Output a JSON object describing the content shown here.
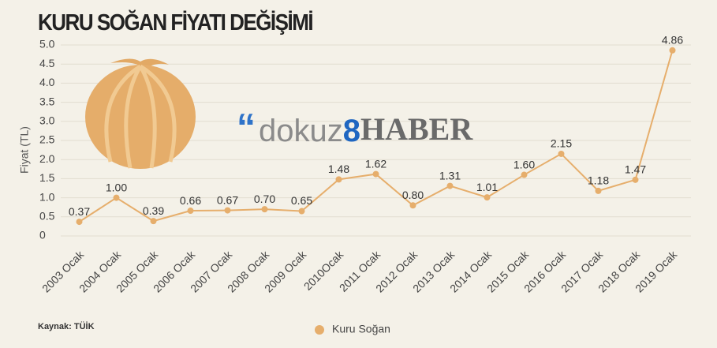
{
  "chart_data": {
    "type": "line",
    "title": "KURU SOĞAN FİYATI DEĞİŞİMİ",
    "y_label": "Fiyat (TL)",
    "categories": [
      "2003 Ocak",
      "2004 Ocak",
      "2005 Ocak",
      "2006 Ocak",
      "2007 Ocak",
      "2008 Ocak",
      "2009 Ocak",
      "2010Ocak",
      "2011 Ocak",
      "2012 Ocak",
      "2013 Ocak",
      "2014 Ocak",
      "2015 Ocak",
      "2016 Ocak",
      "2017 Ocak",
      "2018 Ocak",
      "2019 Ocak"
    ],
    "series": [
      {
        "name": "Kuru Soğan",
        "color": "#e6ae6c",
        "values": [
          0.37,
          1,
          0.39,
          0.66,
          0.67,
          0.7,
          0.65,
          1.48,
          1.62,
          0.8,
          1.31,
          1.01,
          1.6,
          2.15,
          1.18,
          1.47,
          4.86
        ],
        "value_labels": [
          "0.37",
          "1.00",
          "0.39",
          "0.66",
          "0.67",
          "0.70",
          "0.65",
          "1.48",
          "1.62",
          "0.80",
          "1.31",
          "1.01",
          "1.60",
          "2.15",
          "1.18",
          "1.47",
          "4.86"
        ]
      }
    ],
    "ylim": [
      0,
      5
    ],
    "yticks": [
      0,
      0.5,
      {
        "value": 1,
        "label": "1.0"
      },
      1.5,
      {
        "value": 2,
        "label": "2.0"
      },
      2.5,
      {
        "value": 3,
        "label": "3.0"
      },
      3.5,
      {
        "value": 4,
        "label": "4.0"
      },
      4.5,
      {
        "value": 5,
        "label": "5.0"
      }
    ],
    "grid": true,
    "source": "Kaynak: TÜİK",
    "watermark": [
      "dokuz",
      "8",
      "HABER"
    ]
  }
}
